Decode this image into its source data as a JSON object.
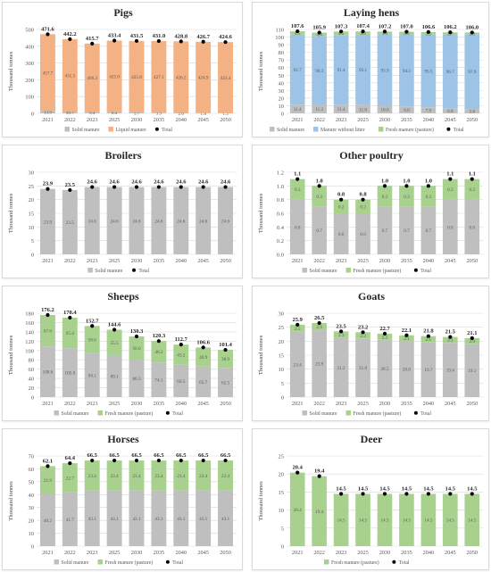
{
  "colors": {
    "solid": "#bfbfbf",
    "liquid": "#f4b183",
    "without_litter": "#9dc3e6",
    "pasture": "#a9d18e",
    "total": "#000000",
    "grid": "#d9d9d9"
  },
  "chart_data": [
    {
      "type": "bar",
      "stacked": true,
      "title": "Pigs",
      "ylabel": "Thousand tonnes",
      "ylim": [
        0,
        500
      ],
      "yticks": [
        0,
        100,
        200,
        300,
        400,
        500
      ],
      "categories": [
        "2021",
        "2022",
        "2023",
        "2025",
        "2030",
        "2035",
        "2040",
        "2045",
        "2050"
      ],
      "series": [
        {
          "name": "Solid manure",
          "color": "#bfbfbf",
          "values": [
            13.9,
            10.7,
            9.4,
            8.4,
            5.7,
            3.9,
            2.6,
            1.8,
            1.3
          ]
        },
        {
          "name": "Liquid manure",
          "color": "#f4b183",
          "values": [
            457.7,
            431.5,
            406.3,
            425.0,
            425.8,
            427.1,
            426.2,
            424.9,
            423.4
          ]
        }
      ],
      "totals": [
        471.6,
        442.2,
        415.7,
        433.4,
        431.5,
        431.0,
        428.8,
        426.7,
        424.6
      ],
      "total_label": "Total",
      "legend_position": "bottom"
    },
    {
      "type": "bar",
      "stacked": true,
      "title": "Laying hens",
      "ylabel": "Thousand tonnes",
      "ylim": [
        0,
        110
      ],
      "yticks": [
        0,
        10,
        20,
        30,
        40,
        50,
        60,
        70,
        80,
        90,
        100,
        110
      ],
      "categories": [
        "2021",
        "2022",
        "2023",
        "2025",
        "2030",
        "2035",
        "2040",
        "2045",
        "2050"
      ],
      "series": [
        {
          "name": "Solid manure",
          "color": "#bfbfbf",
          "values": [
            11.4,
            11.2,
            11.4,
            11.0,
            10.0,
            9.0,
            7.9,
            6.8,
            5.8
          ]
        },
        {
          "name": "Manure without litter",
          "color": "#9dc3e6",
          "values": [
            91.7,
            90.3,
            91.4,
            92.1,
            93.9,
            94.5,
            95.5,
            96.7,
            97.9
          ]
        },
        {
          "name": "Fresh manure (pasture)",
          "color": "#a9d18e",
          "values": [
            4.5,
            4.4,
            4.5,
            4.3,
            3.3,
            3.5,
            3.2,
            2.7,
            2.3
          ]
        }
      ],
      "totals": [
        107.6,
        105.9,
        107.3,
        107.4,
        107.2,
        107.0,
        106.6,
        106.2,
        106.0
      ],
      "total_label": "Total",
      "legend_position": "bottom"
    },
    {
      "type": "bar",
      "stacked": true,
      "title": "Broilers",
      "ylabel": "Thousand tonnes",
      "ylim": [
        0,
        30
      ],
      "yticks": [
        0,
        5,
        10,
        15,
        20,
        25,
        30
      ],
      "categories": [
        "2021",
        "2022",
        "2023",
        "2025",
        "2030",
        "2035",
        "2040",
        "2045",
        "2050"
      ],
      "series": [
        {
          "name": "Solid manure",
          "color": "#bfbfbf",
          "values": [
            23.9,
            23.5,
            24.6,
            24.6,
            24.6,
            24.6,
            24.6,
            24.6,
            24.6
          ]
        }
      ],
      "totals": [
        23.9,
        23.5,
        24.6,
        24.6,
        24.6,
        24.6,
        24.6,
        24.6,
        24.6
      ],
      "total_label": "Total",
      "legend_position": "bottom"
    },
    {
      "type": "bar",
      "stacked": true,
      "title": "Other poultry",
      "ylabel": "Thousand tonnes",
      "ylim": [
        0,
        1.2
      ],
      "yticks": [
        0.0,
        0.2,
        0.4,
        0.6,
        0.8,
        1.0,
        1.2
      ],
      "tick_decimals": 1,
      "categories": [
        "2021",
        "2022",
        "2023",
        "2025",
        "2030",
        "2035",
        "2040",
        "2045",
        "2050"
      ],
      "series": [
        {
          "name": "Solid manure",
          "color": "#bfbfbf",
          "values": [
            0.8,
            0.7,
            0.6,
            0.6,
            0.7,
            0.7,
            0.7,
            0.8,
            0.8
          ]
        },
        {
          "name": "Fresh manure (pasture)",
          "color": "#a9d18e",
          "values": [
            0.3,
            0.3,
            0.2,
            0.2,
            0.3,
            0.3,
            0.3,
            0.3,
            0.3
          ]
        }
      ],
      "totals": [
        1.1,
        1.0,
        0.8,
        0.8,
        1.0,
        1.0,
        1.0,
        1.1,
        1.1
      ],
      "total_label": "Total",
      "legend_position": "bottom"
    },
    {
      "type": "bar",
      "stacked": true,
      "title": "Sheeps",
      "ylabel": "Thousand tonnes",
      "ylim": [
        0,
        180
      ],
      "yticks": [
        0,
        20,
        40,
        60,
        80,
        100,
        120,
        140,
        160,
        180
      ],
      "categories": [
        "2021",
        "2022",
        "2023",
        "2025",
        "2030",
        "2035",
        "2040",
        "2045",
        "2050"
      ],
      "series": [
        {
          "name": "Solid manure",
          "color": "#bfbfbf",
          "values": [
            108.6,
            105.0,
            94.1,
            89.1,
            80.3,
            74.1,
            69.5,
            65.7,
            62.5
          ]
        },
        {
          "name": "Fresh manure (pasture)",
          "color": "#a9d18e",
          "values": [
            67.6,
            65.4,
            58.6,
            55.5,
            50.0,
            46.2,
            43.2,
            40.9,
            38.9
          ]
        }
      ],
      "totals": [
        176.2,
        170.4,
        152.7,
        144.6,
        130.3,
        120.3,
        112.7,
        106.6,
        101.4
      ],
      "total_label": "Total",
      "legend_position": "bottom"
    },
    {
      "type": "bar",
      "stacked": true,
      "title": "Goats",
      "ylabel": "Thousand tonnes",
      "ylim": [
        0,
        30
      ],
      "yticks": [
        0,
        5,
        10,
        15,
        20,
        25,
        30
      ],
      "categories": [
        "2021",
        "2022",
        "2023",
        "2025",
        "2030",
        "2035",
        "2040",
        "2045",
        "2050"
      ],
      "series": [
        {
          "name": "Solid manure",
          "color": "#bfbfbf",
          "values": [
            23.4,
            23.9,
            21.2,
            21.0,
            20.5,
            20.0,
            19.7,
            19.4,
            19.1
          ]
        },
        {
          "name": "Fresh manure (pasture)",
          "color": "#a9d18e",
          "values": [
            2.5,
            2.6,
            2.3,
            2.2,
            2.2,
            2.1,
            2.1,
            2.1,
            2.0
          ]
        }
      ],
      "totals": [
        25.9,
        26.5,
        23.5,
        23.2,
        22.7,
        22.1,
        21.8,
        21.5,
        21.1
      ],
      "total_label": "Total",
      "legend_position": "bottom"
    },
    {
      "type": "bar",
      "stacked": true,
      "title": "Horses",
      "ylabel": "Thousand tonnes",
      "ylim": [
        0,
        70
      ],
      "yticks": [
        0,
        10,
        20,
        30,
        40,
        50,
        60,
        70
      ],
      "categories": [
        "2021",
        "2022",
        "2023",
        "2025",
        "2030",
        "2035",
        "2040",
        "2045",
        "2050"
      ],
      "series": [
        {
          "name": "Solid manure",
          "color": "#bfbfbf",
          "values": [
            40.2,
            41.7,
            43.1,
            43.1,
            43.1,
            43.1,
            43.1,
            43.1,
            43.1
          ]
        },
        {
          "name": "Fresh manure (pasture)",
          "color": "#a9d18e",
          "values": [
            21.9,
            22.7,
            23.4,
            23.4,
            23.4,
            23.4,
            23.4,
            23.4,
            23.4
          ]
        }
      ],
      "totals": [
        62.1,
        64.4,
        66.5,
        66.5,
        66.5,
        66.5,
        66.5,
        66.5,
        66.5
      ],
      "total_label": "Total",
      "legend_position": "bottom"
    },
    {
      "type": "bar",
      "stacked": true,
      "title": "Deer",
      "ylabel": "Thousand tonnes",
      "ylim": [
        0,
        25
      ],
      "yticks": [
        0,
        5,
        10,
        15,
        20,
        25
      ],
      "categories": [
        "2021",
        "2022",
        "2023",
        "2025",
        "2030",
        "2035",
        "2040",
        "2045",
        "2050"
      ],
      "series": [
        {
          "name": "Fresh manure (pasture)",
          "color": "#a9d18e",
          "values": [
            20.4,
            19.4,
            14.5,
            14.5,
            14.5,
            14.5,
            14.5,
            14.5,
            14.5
          ]
        }
      ],
      "totals": [
        20.4,
        19.4,
        14.5,
        14.5,
        14.5,
        14.5,
        14.5,
        14.5,
        14.5
      ],
      "total_label": "Total",
      "legend_position": "bottom"
    }
  ]
}
